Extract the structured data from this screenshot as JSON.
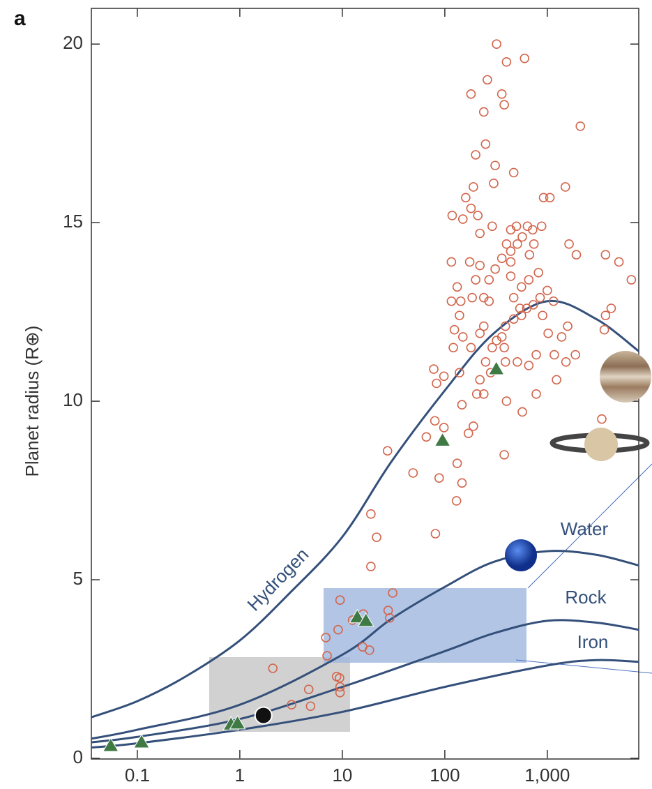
{
  "chart_data": {
    "type": "scatter",
    "panel_label": "a",
    "y_label": "Planet radius (R⊕)",
    "x_log": true,
    "xlim": [
      0.0356,
      7800
    ],
    "ylim": [
      0,
      21
    ],
    "xticks": [
      0.1,
      1,
      10,
      100,
      {
        "value": 1000,
        "label": "1,000"
      }
    ],
    "yticks": [
      0,
      5,
      10,
      15,
      20
    ],
    "curves": [
      {
        "name": "Hydrogen",
        "color": "#34507a",
        "x": [
          0.0356,
          0.1,
          0.3,
          1,
          3,
          10,
          30,
          100,
          300,
          1000,
          3000,
          7800
        ],
        "y": [
          1.15,
          1.6,
          2.3,
          3.3,
          4.6,
          6.2,
          8.3,
          10.3,
          11.9,
          12.8,
          12.3,
          11.4
        ]
      },
      {
        "name": "Water",
        "color": "#34507a",
        "x": [
          0.0356,
          0.1,
          1,
          10,
          30,
          100,
          300,
          1000,
          3000,
          7800
        ],
        "y": [
          0.55,
          0.8,
          1.5,
          2.9,
          3.9,
          4.8,
          5.5,
          5.8,
          5.7,
          5.4
        ]
      },
      {
        "name": "Rock",
        "color": "#34507a",
        "x": [
          0.0356,
          0.1,
          1,
          10,
          100,
          300,
          1000,
          3000,
          7800
        ],
        "y": [
          0.45,
          0.6,
          1.1,
          2.0,
          3.0,
          3.5,
          3.85,
          3.8,
          3.6
        ]
      },
      {
        "name": "Iron",
        "color": "#34507a",
        "x": [
          0.0356,
          0.1,
          1,
          10,
          100,
          1000,
          3000,
          7800
        ],
        "y": [
          0.3,
          0.42,
          0.8,
          1.3,
          2.0,
          2.6,
          2.75,
          2.7
        ]
      }
    ],
    "exoplanets": {
      "color": "#d2654c",
      "x": [
        2.1,
        4.7,
        4.9,
        3.2,
        7.1,
        8.8,
        9.4,
        9.5,
        9.5,
        6.9,
        9.1,
        9.5,
        12.6,
        15.8,
        18.4,
        16,
        28,
        29,
        31,
        19,
        21.6,
        19,
        27.6,
        49,
        66,
        80,
        98,
        132,
        147,
        130,
        88,
        81,
        147,
        139,
        121,
        124,
        116,
        139,
        190,
        205,
        220,
        240,
        290,
        250,
        240,
        270,
        310,
        360,
        400,
        440,
        500,
        510,
        570,
        640,
        720,
        880,
        740,
        670,
        820,
        660,
        560,
        470,
        540,
        630,
        730,
        850,
        1000,
        1150,
        900,
        1020,
        1380,
        1580,
        1880,
        1520,
        1170,
        780,
        660,
        510,
        390,
        380,
        320,
        390,
        470,
        440,
        440,
        440,
        270,
        240,
        220,
        180,
        150,
        200,
        220,
        175,
        220,
        290,
        210,
        180,
        160,
        190,
        300,
        470,
        310,
        250,
        200,
        180,
        240,
        260,
        380,
        360,
        400,
        320,
        600,
        2100,
        920,
        1060,
        1500,
        116,
        1630,
        1920,
        3700,
        5000,
        6600,
        4200,
        3700,
        3600,
        3400,
        1230,
        780,
        570,
        380,
        400,
        280,
        360,
        560,
        132,
        143,
        150,
        118,
        185,
        170,
        98,
        83,
        78
      ],
      "y": [
        2.52,
        1.93,
        1.46,
        1.5,
        2.87,
        2.29,
        2.25,
        2.0,
        1.84,
        3.38,
        3.6,
        4.43,
        3.87,
        3.12,
        3.03,
        4.04,
        4.14,
        3.93,
        4.63,
        5.37,
        6.19,
        6.84,
        8.61,
        7.99,
        9.0,
        9.45,
        9.26,
        8.26,
        7.71,
        7.21,
        7.85,
        6.29,
        9.9,
        10.8,
        11.5,
        12.0,
        12.8,
        12.4,
        9.3,
        10.2,
        10.6,
        10.2,
        11.5,
        11.1,
        12.9,
        13.4,
        13.7,
        14.0,
        14.4,
        14.8,
        14.9,
        14.4,
        14.6,
        14.9,
        14.8,
        14.9,
        14.4,
        14.1,
        13.6,
        13.4,
        13.2,
        12.9,
        12.6,
        12.6,
        12.7,
        12.9,
        13.1,
        12.8,
        12.4,
        11.9,
        11.8,
        12.1,
        11.3,
        11.1,
        11.3,
        11.3,
        11.0,
        11.1,
        11.1,
        11.5,
        11.7,
        12.1,
        12.3,
        13.5,
        13.9,
        14.2,
        12.8,
        12.1,
        11.9,
        11.5,
        11.8,
        13.4,
        13.8,
        13.9,
        14.7,
        14.9,
        15.2,
        15.4,
        15.7,
        16.0,
        16.1,
        16.4,
        16.6,
        17.2,
        16.9,
        18.6,
        18.1,
        19.0,
        18.3,
        18.6,
        19.5,
        20.0,
        19.6,
        17.7,
        15.7,
        15.7,
        16.0,
        13.9,
        14.4,
        14.1,
        14.1,
        13.9,
        13.4,
        12.6,
        12.4,
        12.0,
        9.5,
        10.6,
        10.2,
        9.7,
        8.5,
        10.0,
        10.8,
        11.8,
        12.4,
        13.2,
        12.8,
        15.1,
        15.2,
        12.9,
        9.1,
        10.7,
        10.5,
        10.9
      ]
    },
    "solar_system": {
      "color": "#3f7a45",
      "x": [
        0.055,
        0.11,
        0.82,
        0.95,
        14,
        17,
        95,
        318
      ],
      "y": [
        0.35,
        0.45,
        0.95,
        0.98,
        3.95,
        3.85,
        8.9,
        10.9
      ]
    },
    "black_point": {
      "color": "#111111",
      "x": [
        1.7
      ],
      "y": [
        1.2
      ]
    }
  }
}
